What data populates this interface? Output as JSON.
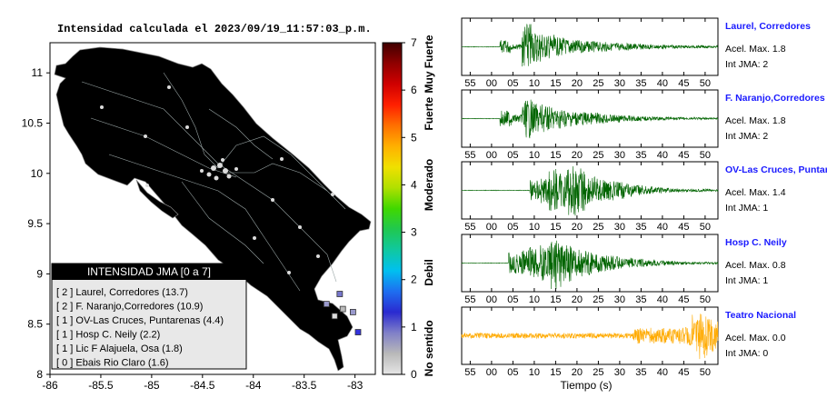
{
  "map": {
    "title": "Intensidad calculada el 2023/09/19_11:57:03_p.m.",
    "x_ticks": [
      "-86",
      "-85.5",
      "-85",
      "-84.5",
      "-84",
      "-83.5",
      "-83"
    ],
    "y_ticks": [
      "11",
      "10.5",
      "10",
      "9.5",
      "9",
      "8.5",
      "8"
    ],
    "xlim": [
      -86,
      -82.8
    ],
    "ylim": [
      8,
      11.3
    ],
    "land_color": "#b2ebeb",
    "legend": {
      "title": "INTENSIDAD JMA [0 a 7]",
      "items": [
        "[ 2 ]  Laurel, Corredores (13.7)",
        "[ 2 ]  F. Naranjo,Corredores (10.9)",
        "[ 1 ]  OV-Las Cruces, Puntarenas (4.4)",
        "[ 1 ]  Hosp C. Neily (2.2)",
        "[ 1 ]  Lic F Alajuela, Osa (1.8)",
        "[ 0 ]  Ebais Rio Claro (1.6)"
      ]
    },
    "stations": [
      {
        "lon": -82.97,
        "lat": 8.42,
        "color": "#3333dd"
      },
      {
        "lon": -83.15,
        "lat": 8.8,
        "color": "#7777cc"
      },
      {
        "lon": -83.28,
        "lat": 8.7,
        "color": "#9999cc"
      },
      {
        "lon": -83.02,
        "lat": 8.62,
        "color": "#9999cc"
      },
      {
        "lon": -83.12,
        "lat": 8.65,
        "color": "#bbbbbb"
      },
      {
        "lon": -83.2,
        "lat": 8.58,
        "color": "#dddddd"
      }
    ]
  },
  "colorbar": {
    "ticks": [
      "7",
      "6",
      "5",
      "4",
      "3",
      "2",
      "1",
      "0"
    ],
    "labels": [
      "Muy Fuerte",
      "Fuerte",
      "Moderado",
      "Debil",
      "No sentido"
    ],
    "range": [
      0,
      7
    ],
    "colors": [
      "#e6e6e6",
      "#b9b9b9",
      "#8080c8",
      "#2a2ad0",
      "#1e6ef0",
      "#00c0f0",
      "#10c8a0",
      "#20c850",
      "#40d800",
      "#b0e000",
      "#f0e000",
      "#ffb000",
      "#ff7000",
      "#ff2000",
      "#d00000",
      "#900000",
      "#400000"
    ]
  },
  "chart_data": {
    "type": "line",
    "xlabel": "Tiempo (s)",
    "x_ticks": [
      "55",
      "00",
      "05",
      "10",
      "15",
      "20",
      "25",
      "30",
      "35",
      "40",
      "45",
      "50"
    ],
    "panels": [
      {
        "station": "Laurel, Corredores",
        "accel": "Acel. Max. 1.8",
        "jma": "Int JMA: 2",
        "color": "#006400",
        "onset": "02",
        "envelope": [
          0.25,
          0.1,
          0.9,
          0.6,
          0.45,
          0.35,
          0.3,
          0.25,
          0.2,
          0.18,
          0.15,
          0.13,
          0.12,
          0.1,
          0.08,
          0.07,
          0.06,
          0.05,
          0.05,
          0.04
        ]
      },
      {
        "station": "F. Naranjo,Corredores",
        "accel": "Acel. Max. 1.8",
        "jma": "Int JMA: 2",
        "color": "#006400",
        "onset": "02",
        "envelope": [
          0.3,
          0.15,
          0.75,
          0.55,
          0.45,
          0.38,
          0.3,
          0.25,
          0.22,
          0.18,
          0.15,
          0.12,
          0.1,
          0.08,
          0.07,
          0.06,
          0.05,
          0.04,
          0.04,
          0.03
        ]
      },
      {
        "station": "OV-Las Cruces, Puntar",
        "accel": "Acel. Max. 1.4",
        "jma": "Int JMA: 1",
        "color": "#006400",
        "onset": "09",
        "envelope": [
          0.4,
          0.5,
          0.8,
          0.65,
          1.0,
          0.85,
          0.55,
          0.45,
          0.38,
          0.32,
          0.26,
          0.2,
          0.16,
          0.12,
          0.1,
          0.08,
          0.06,
          0.05,
          0.05,
          0.04
        ]
      },
      {
        "station": "Hosp C. Neily",
        "accel": "Acel. Max. 0.8",
        "jma": "Int JMA: 1",
        "color": "#006400",
        "onset": "04",
        "envelope": [
          0.4,
          0.5,
          0.6,
          0.7,
          1.0,
          0.7,
          0.5,
          0.45,
          0.35,
          0.3,
          0.25,
          0.2,
          0.15,
          0.12,
          0.1,
          0.08,
          0.06,
          0.05,
          0.04,
          0.04
        ]
      },
      {
        "station": "Teatro Nacional",
        "accel": "Acel. Max. 0.0",
        "jma": "Int JMA: 0",
        "color": "#ffaa00",
        "onset": "33",
        "envelope": [
          0.3,
          0.3,
          0.3,
          0.3,
          0.3,
          0.3,
          0.3,
          0.3,
          0.3,
          0.3,
          0.3,
          0.3,
          0.35,
          0.4,
          1.0,
          0.95,
          0.85,
          0.75,
          0.65,
          0.55
        ]
      }
    ]
  }
}
